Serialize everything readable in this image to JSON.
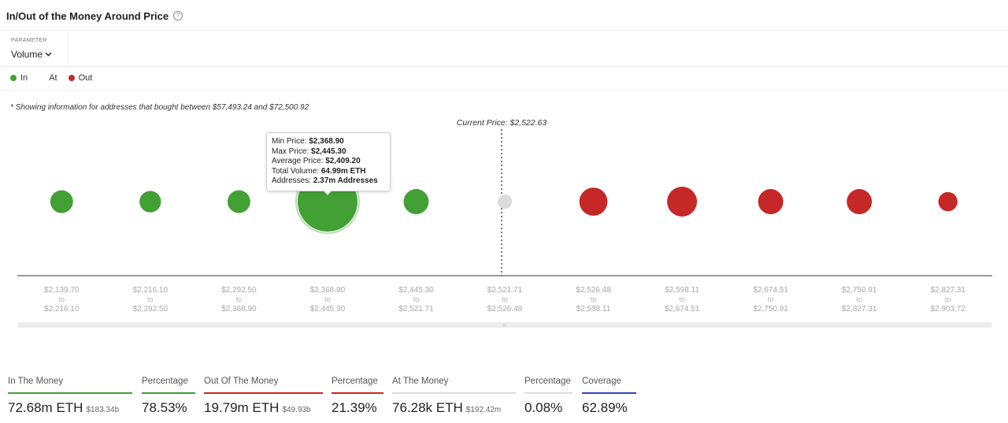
{
  "header": {
    "title": "In/Out of the Money Around Price",
    "help_icon": "question-circle-icon"
  },
  "parameter": {
    "label": "PARAMETER",
    "value": "Volume"
  },
  "legend": [
    {
      "label": "In",
      "color": "#43a035"
    },
    {
      "label": "At",
      "color": "#ffffff"
    },
    {
      "label": "Out",
      "color": "#c62828"
    }
  ],
  "note": "* Showing information for addresses that bought between $57,493.24 and $72,500.92",
  "chart_data": {
    "type": "bubble",
    "current_price_label": "Current Price: $2,522.63",
    "colors": {
      "in": "#43a035",
      "at": "#dcdcdc",
      "out": "#c62828"
    },
    "categories": [
      {
        "from": "$2,139.70",
        "to": "$2,216.10",
        "status": "in",
        "relative_size": 0.38
      },
      {
        "from": "$2,216.10",
        "to": "$2,292.50",
        "status": "in",
        "relative_size": 0.36
      },
      {
        "from": "$2,292.50",
        "to": "$2,368.90",
        "status": "in",
        "relative_size": 0.38
      },
      {
        "from": "$2,368.90",
        "to": "$2,445.30",
        "status": "in",
        "relative_size": 1.0
      },
      {
        "from": "$2,445.30",
        "to": "$2,521.71",
        "status": "in",
        "relative_size": 0.42
      },
      {
        "from": "$2,521.71",
        "to": "$2,526.48",
        "status": "at",
        "relative_size": 0.24
      },
      {
        "from": "$2,526.48",
        "to": "$2,598.11",
        "status": "out",
        "relative_size": 0.47
      },
      {
        "from": "$2,598.11",
        "to": "$2,674.51",
        "status": "out",
        "relative_size": 0.5
      },
      {
        "from": "$2,674.51",
        "to": "$2,750.91",
        "status": "out",
        "relative_size": 0.42
      },
      {
        "from": "$2,750.91",
        "to": "$2,827.31",
        "status": "out",
        "relative_size": 0.42
      },
      {
        "from": "$2,827.31",
        "to": "$2,903.72",
        "status": "out",
        "relative_size": 0.32
      }
    ],
    "to_word": "to",
    "tooltip": {
      "min_price_label": "Min Price:",
      "min_price": "$2,368.90",
      "max_price_label": "Max Price:",
      "max_price": "$2,445.30",
      "avg_price_label": "Average Price:",
      "avg_price": "$2,409.20",
      "volume_label": "Total Volume:",
      "volume": "64.99m ETH",
      "addresses_label": "Addresses:",
      "addresses": "2.37m Addresses"
    }
  },
  "stats": [
    {
      "label": "In The Money",
      "value": "72.68m ETH",
      "sub": "$183.34b",
      "line_color": "#43a035"
    },
    {
      "label": "Percentage",
      "value": "78.53%",
      "sub": "",
      "line_color": "#43a035"
    },
    {
      "label": "Out Of The Money",
      "value": "19.79m ETH",
      "sub": "$49.93b",
      "line_color": "#c62828"
    },
    {
      "label": "Percentage",
      "value": "21.39%",
      "sub": "",
      "line_color": "#c62828"
    },
    {
      "label": "At The Money",
      "value": "76.28k ETH",
      "sub": "$192.42m",
      "line_color": "#dddddd"
    },
    {
      "label": "Percentage",
      "value": "0.08%",
      "sub": "",
      "line_color": "#dddddd"
    },
    {
      "label": "Coverage",
      "value": "62.89%",
      "sub": "",
      "line_color": "#2f49b8"
    }
  ]
}
